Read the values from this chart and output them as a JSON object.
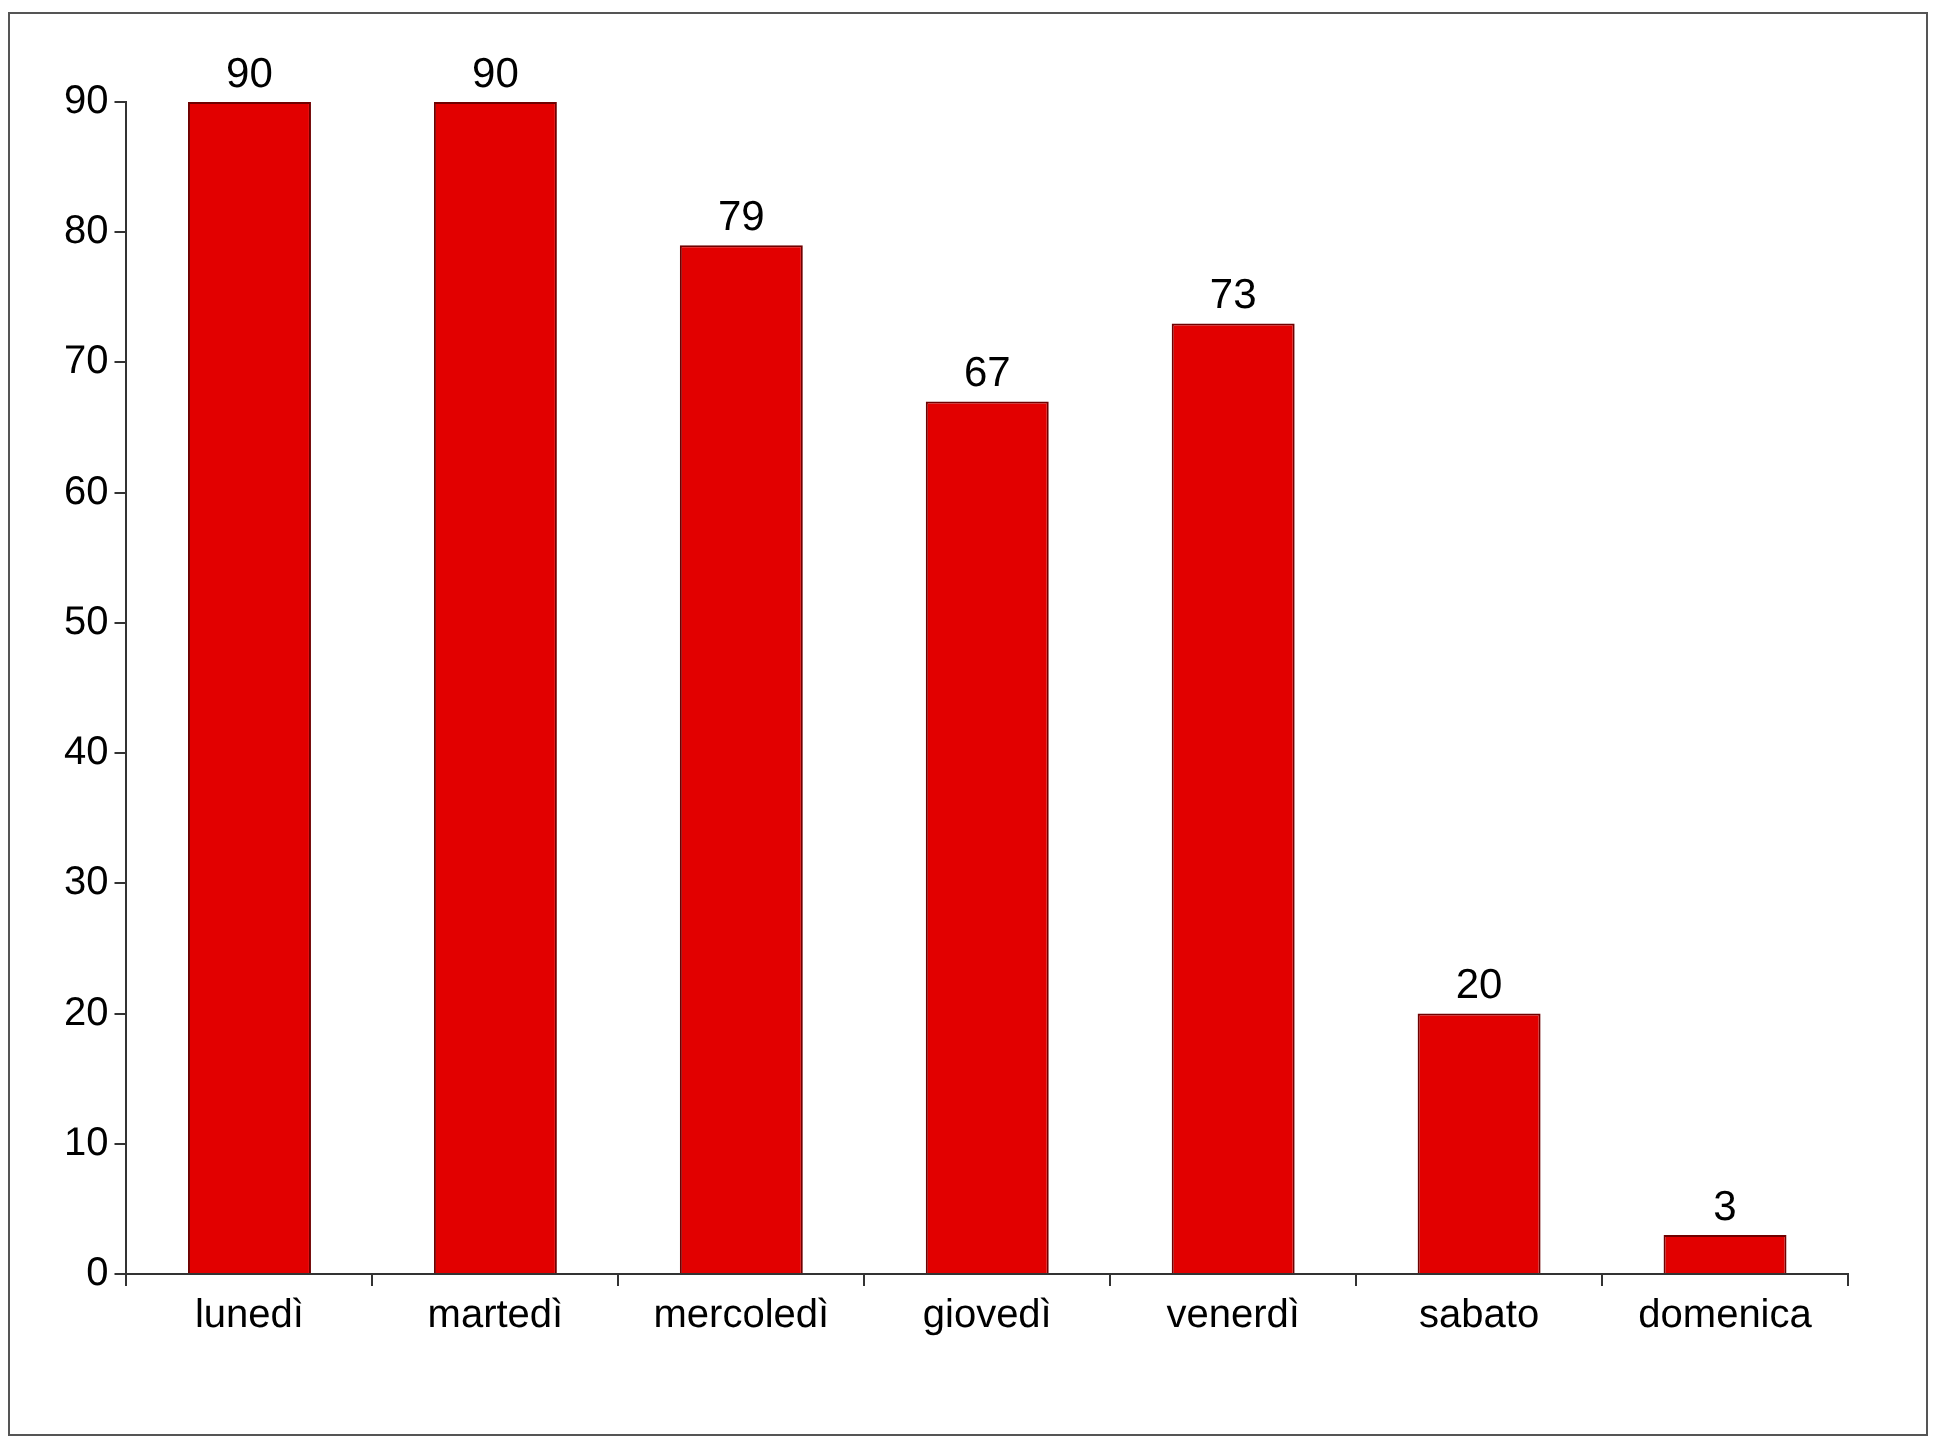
{
  "chart_data": {
    "type": "bar",
    "categories": [
      "lunedì",
      "martedì",
      "mercoledì",
      "giovedì",
      "venerdì",
      "sabato",
      "domenica"
    ],
    "values": [
      90,
      90,
      79,
      67,
      73,
      20,
      3
    ],
    "color": "#e20000",
    "ylim": [
      0,
      90
    ],
    "yticks": [
      0,
      10,
      20,
      30,
      40,
      50,
      60,
      70,
      80,
      90
    ],
    "data_labels": true,
    "grid": false,
    "legend": false
  }
}
